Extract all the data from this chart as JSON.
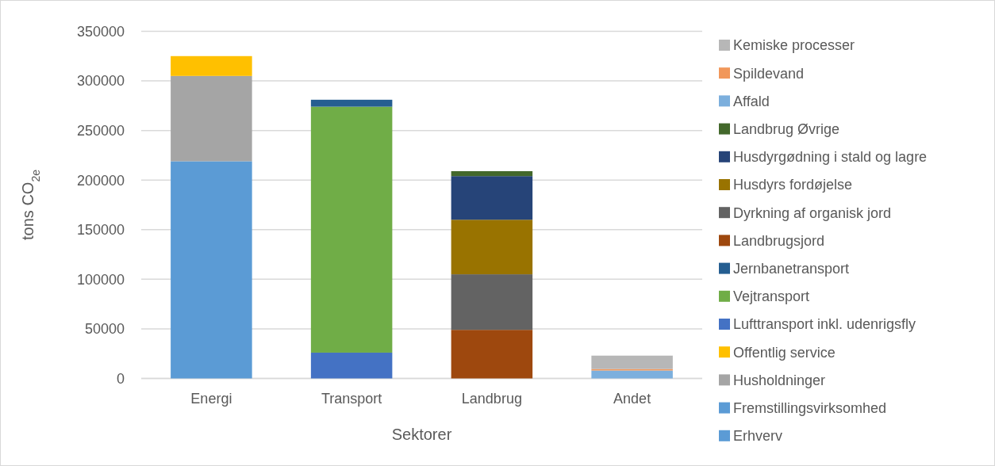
{
  "chart_data": {
    "type": "bar",
    "stacked": true,
    "xlabel": "Sektorer",
    "ylabel": "tons CO$_{2e}$",
    "categories": [
      "Energi",
      "Transport",
      "Landbrug",
      "Andet"
    ],
    "series": [
      {
        "name": "Erhverv",
        "color": "#5b9bd5",
        "values": [
          null,
          null,
          null,
          null
        ]
      },
      {
        "name": "Fremstillingsvirksomhed",
        "color": "#5b9bd5",
        "values": [
          219000,
          null,
          null,
          null
        ]
      },
      {
        "name": "Husholdninger",
        "color": "#a5a5a5",
        "values": [
          86000,
          null,
          null,
          null
        ]
      },
      {
        "name": "Offentlig service",
        "color": "#ffc000",
        "values": [
          20000,
          null,
          null,
          null
        ]
      },
      {
        "name": "Lufttransport inkl. udenrigsfly",
        "color": "#4472c4",
        "values": [
          null,
          26000,
          null,
          null
        ]
      },
      {
        "name": "Vejtransport",
        "color": "#70ad47",
        "values": [
          null,
          248000,
          null,
          null
        ]
      },
      {
        "name": "Jernbanetransport",
        "color": "#255e91",
        "values": [
          null,
          7000,
          null,
          null
        ]
      },
      {
        "name": "Landbrugsjord",
        "color": "#9e480e",
        "values": [
          null,
          null,
          49000,
          null
        ]
      },
      {
        "name": "Dyrkning af organisk jord",
        "color": "#636363",
        "values": [
          null,
          null,
          56000,
          null
        ]
      },
      {
        "name": "Husdyrs fordøjelse",
        "color": "#997300",
        "values": [
          null,
          null,
          55000,
          null
        ]
      },
      {
        "name": "Husdyrgødning i stald og lagre",
        "color": "#264478",
        "values": [
          null,
          null,
          44000,
          null
        ]
      },
      {
        "name": "Landbrug Øvrige",
        "color": "#43682b",
        "values": [
          null,
          null,
          5000,
          null
        ]
      },
      {
        "name": "Affald",
        "color": "#7cafdd",
        "values": [
          null,
          null,
          null,
          8000
        ]
      },
      {
        "name": "Spildevand",
        "color": "#f1975a",
        "values": [
          null,
          null,
          null,
          1500
        ]
      },
      {
        "name": "Kemiske processer",
        "color": "#b7b7b7",
        "values": [
          null,
          null,
          null,
          13500
        ]
      }
    ],
    "ylim": [
      0,
      350000
    ],
    "yticks": [
      0,
      50000,
      100000,
      150000,
      200000,
      250000,
      300000,
      350000
    ],
    "grid": "y",
    "legend": "right"
  }
}
